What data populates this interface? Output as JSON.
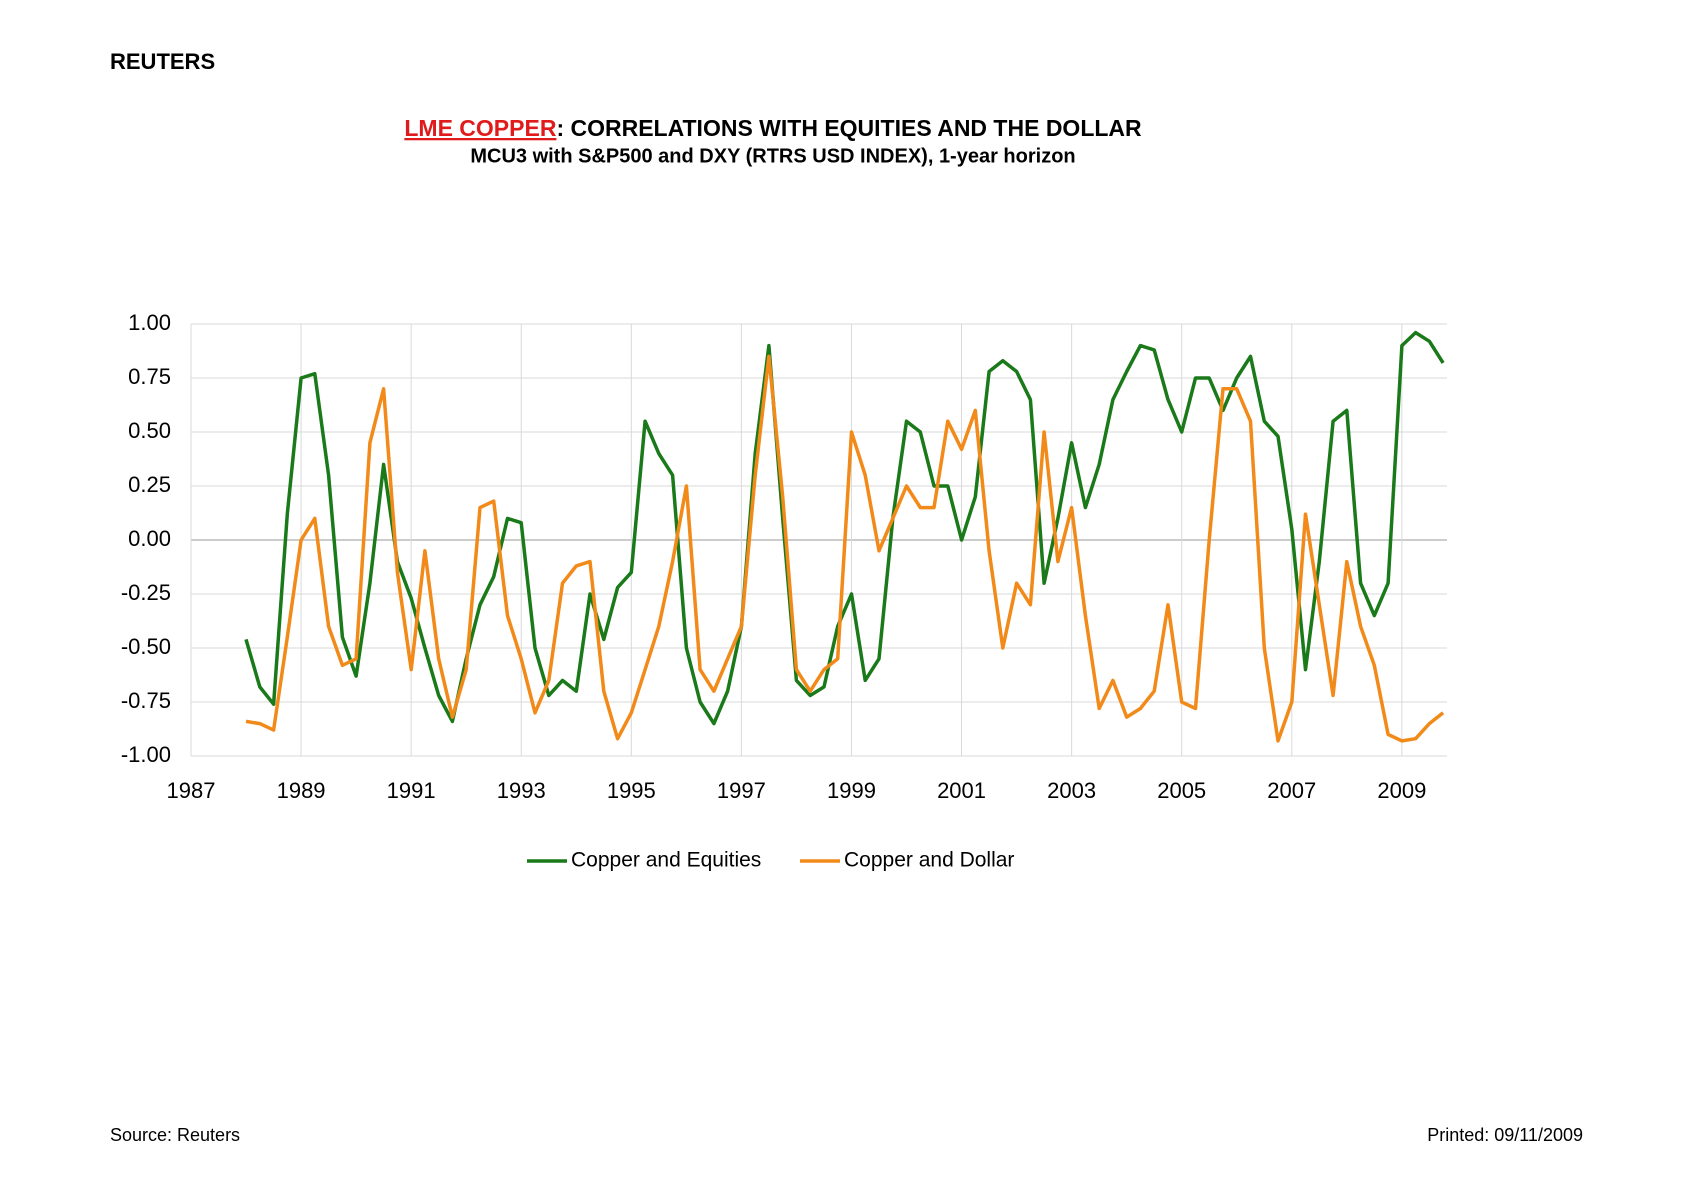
{
  "header": "REUTERS",
  "footer": {
    "source": "Source:  Reuters",
    "printed": "Printed:  09/11/2009"
  },
  "chart_data": {
    "type": "line",
    "title_highlight": "LME COPPER",
    "title": ": CORRELATIONS WITH EQUITIES AND THE DOLLAR",
    "subtitle": "MCU3 with S&P500 and DXY (RTRS USD INDEX), 1-year horizon",
    "x": [
      1988.0,
      1988.25,
      1988.5,
      1988.75,
      1989.0,
      1989.25,
      1989.5,
      1989.75,
      1990.0,
      1990.25,
      1990.5,
      1990.75,
      1991.0,
      1991.25,
      1991.5,
      1991.75,
      1992.0,
      1992.25,
      1992.5,
      1992.75,
      1993.0,
      1993.25,
      1993.5,
      1993.75,
      1994.0,
      1994.25,
      1994.5,
      1994.75,
      1995.0,
      1995.25,
      1995.5,
      1995.75,
      1996.0,
      1996.25,
      1996.5,
      1996.75,
      1997.0,
      1997.25,
      1997.5,
      1997.75,
      1998.0,
      1998.25,
      1998.5,
      1998.75,
      1999.0,
      1999.25,
      1999.5,
      1999.75,
      2000.0,
      2000.25,
      2000.5,
      2000.75,
      2001.0,
      2001.25,
      2001.5,
      2001.75,
      2002.0,
      2002.25,
      2002.5,
      2002.75,
      2003.0,
      2003.25,
      2003.5,
      2003.75,
      2004.0,
      2004.25,
      2004.5,
      2004.75,
      2005.0,
      2005.25,
      2005.5,
      2005.75,
      2006.0,
      2006.25,
      2006.5,
      2006.75,
      2007.0,
      2007.25,
      2007.5,
      2007.75,
      2008.0,
      2008.25,
      2008.5,
      2008.75,
      2009.0,
      2009.25,
      2009.5,
      2009.75
    ],
    "series": [
      {
        "name": "Copper and Equities",
        "color": "#1a7a1a",
        "values": [
          -0.46,
          -0.68,
          -0.76,
          0.12,
          0.75,
          0.77,
          0.3,
          -0.45,
          -0.63,
          -0.2,
          0.35,
          -0.1,
          -0.27,
          -0.5,
          -0.72,
          -0.84,
          -0.55,
          -0.3,
          -0.17,
          0.1,
          0.08,
          -0.5,
          -0.72,
          -0.65,
          -0.7,
          -0.25,
          -0.46,
          -0.22,
          -0.15,
          0.55,
          0.4,
          0.3,
          -0.5,
          -0.75,
          -0.85,
          -0.7,
          -0.4,
          0.4,
          0.9,
          0.1,
          -0.65,
          -0.72,
          -0.68,
          -0.4,
          -0.25,
          -0.65,
          -0.55,
          0.1,
          0.55,
          0.5,
          0.25,
          0.25,
          0.0,
          0.2,
          0.78,
          0.83,
          0.78,
          0.65,
          -0.2,
          0.1,
          0.45,
          0.15,
          0.35,
          0.65,
          0.78,
          0.9,
          0.88,
          0.65,
          0.5,
          0.75,
          0.75,
          0.6,
          0.75,
          0.85,
          0.55,
          0.48,
          0.05,
          -0.6,
          -0.1,
          0.55,
          0.6,
          -0.2,
          -0.35,
          -0.2,
          0.9,
          0.96,
          0.92,
          0.82
        ]
      },
      {
        "name": "Copper and Dollar",
        "color": "#f28a1a",
        "values": [
          -0.84,
          -0.85,
          -0.88,
          -0.45,
          0.0,
          0.1,
          -0.4,
          -0.58,
          -0.55,
          0.45,
          0.7,
          -0.15,
          -0.6,
          -0.05,
          -0.55,
          -0.82,
          -0.6,
          0.15,
          0.18,
          -0.35,
          -0.55,
          -0.8,
          -0.65,
          -0.2,
          -0.12,
          -0.1,
          -0.7,
          -0.92,
          -0.8,
          -0.6,
          -0.4,
          -0.1,
          0.25,
          -0.6,
          -0.7,
          -0.55,
          -0.4,
          0.3,
          0.85,
          0.2,
          -0.6,
          -0.7,
          -0.6,
          -0.55,
          0.5,
          0.3,
          -0.05,
          0.1,
          0.25,
          0.15,
          0.15,
          0.55,
          0.42,
          0.6,
          -0.05,
          -0.5,
          -0.2,
          -0.3,
          0.5,
          -0.1,
          0.15,
          -0.35,
          -0.78,
          -0.65,
          -0.82,
          -0.78,
          -0.7,
          -0.3,
          -0.75,
          -0.78,
          0.0,
          0.7,
          0.7,
          0.55,
          -0.5,
          -0.93,
          -0.75,
          0.12,
          -0.3,
          -0.72,
          -0.1,
          -0.4,
          -0.58,
          -0.9,
          -0.93,
          -0.92,
          -0.85,
          -0.8
        ]
      }
    ],
    "xlim": [
      1987,
      2009.82
    ],
    "xticks": [
      1987,
      1989,
      1991,
      1993,
      1995,
      1997,
      1999,
      2001,
      2003,
      2005,
      2007,
      2009
    ],
    "ylim": [
      -1,
      1
    ],
    "yticks": [
      {
        "value": -1,
        "label": "-1.00"
      },
      {
        "value": -0.75,
        "label": "-0.75"
      },
      {
        "value": -0.5,
        "label": "-0.50"
      },
      {
        "value": -0.25,
        "label": "-0.25"
      },
      {
        "value": 0,
        "label": "0.00"
      },
      {
        "value": 0.25,
        "label": "0.25"
      },
      {
        "value": 0.5,
        "label": "0.50"
      },
      {
        "value": 0.75,
        "label": "0.75"
      },
      {
        "value": 1,
        "label": "1.00"
      }
    ],
    "grid": true,
    "legend": "bottom"
  }
}
